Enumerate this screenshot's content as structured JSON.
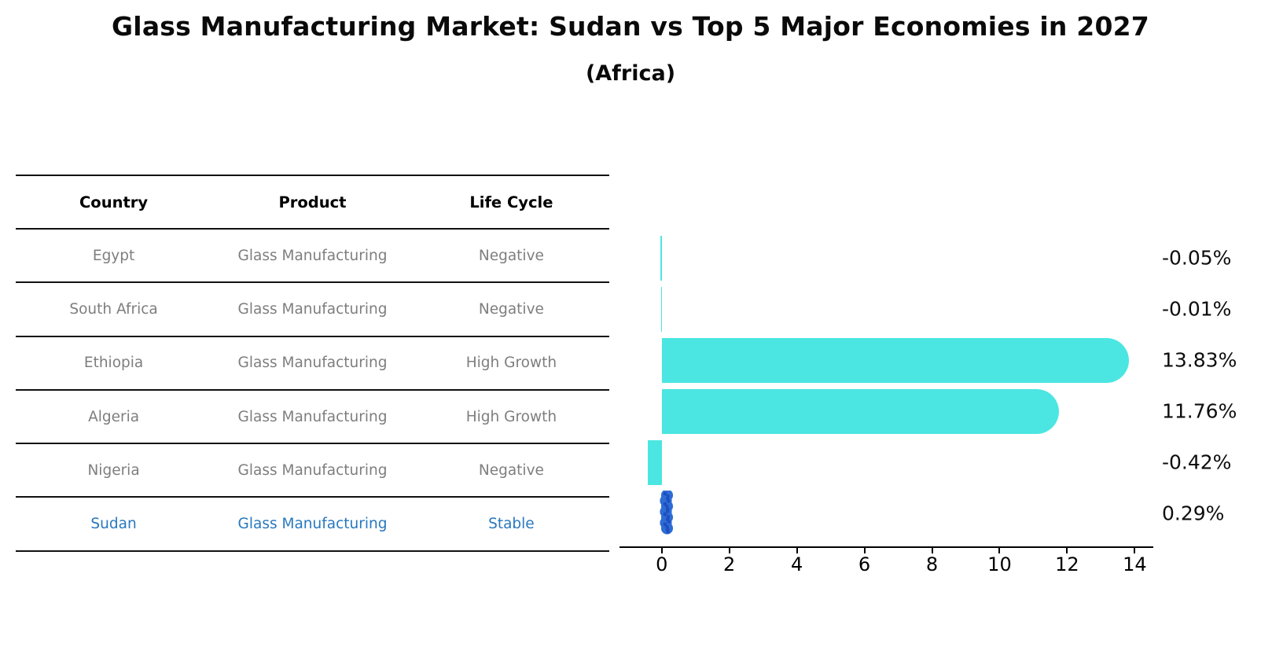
{
  "header": {
    "title": "Glass Manufacturing Market: Sudan vs Top 5 Major Economies in 2027",
    "subtitle": "(Africa)"
  },
  "table": {
    "columns": [
      "Country",
      "Product",
      "Life Cycle"
    ],
    "rows": [
      {
        "country": "Egypt",
        "product": "Glass Manufacturing",
        "life_cycle": "Negative",
        "highlight": false
      },
      {
        "country": "South Africa",
        "product": "Glass Manufacturing",
        "life_cycle": "Negative",
        "highlight": false
      },
      {
        "country": "Ethiopia",
        "product": "Glass Manufacturing",
        "life_cycle": "High Growth",
        "highlight": false
      },
      {
        "country": "Algeria",
        "product": "Glass Manufacturing",
        "life_cycle": "High Growth",
        "highlight": false
      },
      {
        "country": "Nigeria",
        "product": "Glass Manufacturing",
        "life_cycle": "Negative",
        "highlight": false
      },
      {
        "country": "Sudan",
        "product": "Glass Manufacturing",
        "life_cycle": "Stable",
        "highlight": true
      }
    ]
  },
  "chart_data": {
    "type": "bar",
    "orientation": "horizontal",
    "title": "Glass Manufacturing Market: Sudan vs Top 5 Major Economies in 2027 (Africa)",
    "categories": [
      "Egypt",
      "South Africa",
      "Ethiopia",
      "Algeria",
      "Nigeria",
      "Sudan"
    ],
    "values": [
      -0.05,
      -0.01,
      13.83,
      11.76,
      -0.42,
      0.29
    ],
    "value_labels": [
      "-0.05%",
      "-0.01%",
      "13.83%",
      "11.76%",
      "-0.42%",
      "0.29%"
    ],
    "x_ticks": [
      0,
      2,
      4,
      6,
      8,
      10,
      12,
      14
    ],
    "xlim": [
      -1.25,
      14.55
    ],
    "grid": false,
    "legend": false,
    "highlight_index": 5,
    "bar_color": "#4BE6E1",
    "highlight_bar_color": "#2E6CD6",
    "highlight_dot_color": "#1E4FBE",
    "highlight_text_color": "#2878BE"
  }
}
